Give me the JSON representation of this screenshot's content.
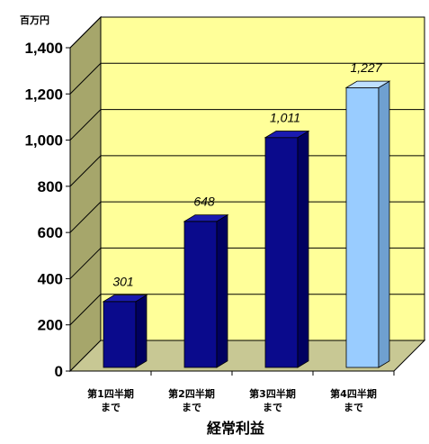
{
  "chart_data": {
    "type": "bar",
    "unit": "百万円",
    "categories": [
      [
        "第1四半期",
        "まで"
      ],
      [
        "第2四半期",
        "まで"
      ],
      [
        "第3四半期",
        "まで"
      ],
      [
        "第4四半期",
        "まで"
      ]
    ],
    "values": [
      301,
      648,
      1011,
      1227
    ],
    "data_labels": [
      "301",
      "648",
      "1,011",
      "1,227"
    ],
    "xlabel": "経常利益",
    "ylim": [
      0,
      1400
    ],
    "yticks": [
      0,
      200,
      400,
      600,
      800,
      1000,
      1200,
      1400
    ],
    "ytick_labels": [
      "0",
      "200",
      "400",
      "600",
      "800",
      "1,000",
      "1,200",
      "1,400"
    ],
    "grid": true,
    "three_d": true,
    "colors": {
      "wall": "#FFFF99",
      "side_wall": "#A6A66B",
      "floor": "#C8C894",
      "bar_front": "#0A0A8C",
      "bar_side": "#000060",
      "bar_top": "#1A1AB0",
      "highlight_front": "#99CCFF",
      "highlight_side": "#6FA0D0",
      "highlight_top": "#BFE0FF",
      "grid": "#000000"
    },
    "highlight_index": 3
  }
}
